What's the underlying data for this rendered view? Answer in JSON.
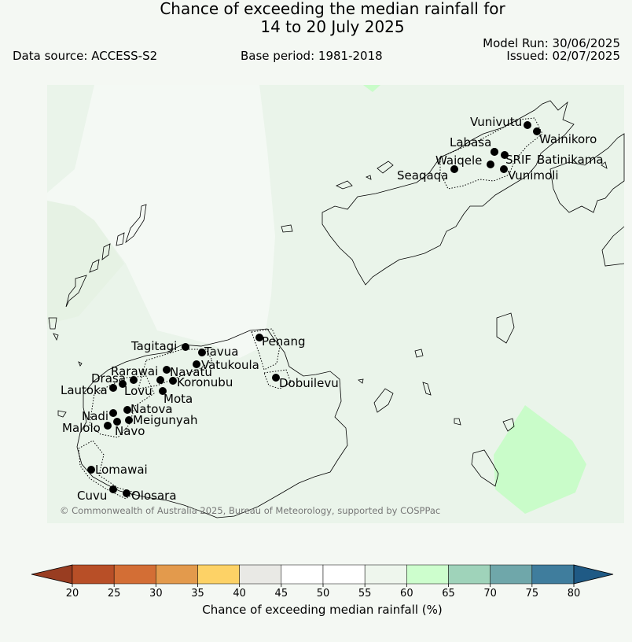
{
  "title": {
    "line1": "Chance of exceeding the median rainfall for",
    "line2": "14 to 20 July 2025"
  },
  "header": {
    "data_source": "Data source: ACCESS-S2",
    "base_period": "Base period: 1981-2018",
    "model_run": "Model Run: 30/06/2025",
    "issued": "Issued: 02/07/2025"
  },
  "map": {
    "copyright": "© Commonwealth of Australia 2025, Bureau of Meteorology, supported by COSPPac",
    "station_marker_color": "#000000",
    "coastline_color": "#000000",
    "places": [
      {
        "name": "Vunivutu"
      },
      {
        "name": "Wainikoro"
      },
      {
        "name": "Labasa"
      },
      {
        "name": "Waiqele"
      },
      {
        "name": "SRIF"
      },
      {
        "name": "Batinikama"
      },
      {
        "name": "Seaqaqa"
      },
      {
        "name": "Vunimoli"
      },
      {
        "name": "Penang"
      },
      {
        "name": "Tagitagi"
      },
      {
        "name": "Tavua"
      },
      {
        "name": "Vatukoula"
      },
      {
        "name": "Rarawai"
      },
      {
        "name": "Navatu"
      },
      {
        "name": "Drasa"
      },
      {
        "name": "Koronubu"
      },
      {
        "name": "Lautoka"
      },
      {
        "name": "Lovu"
      },
      {
        "name": "Mota"
      },
      {
        "name": "Dobuilevu"
      },
      {
        "name": "Natova"
      },
      {
        "name": "Nadi"
      },
      {
        "name": "Meigunyah"
      },
      {
        "name": "Malolo"
      },
      {
        "name": "Navo"
      },
      {
        "name": "Lomawai"
      },
      {
        "name": "Cuvu"
      },
      {
        "name": "Olosara"
      }
    ]
  },
  "colorbar": {
    "title": "Chance of exceeding median rainfall (%)",
    "ticks": [
      "20",
      "25",
      "30",
      "35",
      "40",
      "45",
      "50",
      "55",
      "60",
      "65",
      "70",
      "75",
      "80"
    ],
    "low_extend_color": "#993d21",
    "high_extend_color": "#1f5a85",
    "bin_colors": [
      "#b84f27",
      "#d36e35",
      "#e39a4c",
      "#fdd266",
      "#e9e9e5",
      "#ffffff",
      "#ffffff",
      "#eef6ed",
      "#cdfecd",
      "#9fd3ba",
      "#6fa7aa",
      "#3f7d9d"
    ]
  }
}
